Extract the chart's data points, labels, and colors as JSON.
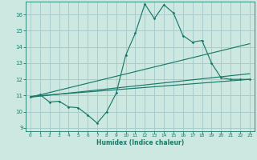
{
  "title": "",
  "xlabel": "Humidex (Indice chaleur)",
  "bg_color": "#cce8e0",
  "grid_color": "#aacccc",
  "line_color": "#1a7a6a",
  "xlim": [
    -0.5,
    23.5
  ],
  "ylim": [
    8.8,
    16.8
  ],
  "xticks": [
    0,
    1,
    2,
    3,
    4,
    5,
    6,
    7,
    8,
    9,
    10,
    11,
    12,
    13,
    14,
    15,
    16,
    17,
    18,
    19,
    20,
    21,
    22,
    23
  ],
  "yticks": [
    9,
    10,
    11,
    12,
    13,
    14,
    15,
    16
  ],
  "line1_x": [
    0,
    1,
    2,
    3,
    4,
    5,
    6,
    7,
    8,
    9,
    10,
    11,
    12,
    13,
    14,
    15,
    16,
    17,
    18,
    19,
    20,
    21,
    22,
    23
  ],
  "line1_y": [
    10.9,
    11.05,
    10.6,
    10.65,
    10.3,
    10.25,
    9.8,
    9.3,
    10.0,
    11.15,
    13.5,
    14.85,
    16.65,
    15.75,
    16.6,
    16.1,
    14.7,
    14.3,
    14.4,
    13.0,
    12.1,
    12.0,
    12.0,
    12.0
  ],
  "trend1_x": [
    0,
    23
  ],
  "trend1_y": [
    10.9,
    14.2
  ],
  "trend2_x": [
    0,
    23
  ],
  "trend2_y": [
    10.9,
    12.35
  ],
  "trend3_x": [
    0,
    23
  ],
  "trend3_y": [
    10.95,
    12.0
  ]
}
